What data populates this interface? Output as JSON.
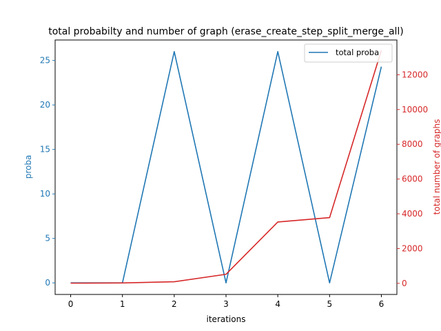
{
  "chart_data": {
    "type": "line",
    "title": "total probabilty and number of graph (erase_create_step_split_merge_all)",
    "xlabel": "iterations",
    "ylabel_left": "proba",
    "ylabel_right": "total number of graphs",
    "x": [
      0,
      1,
      2,
      3,
      4,
      5,
      6
    ],
    "xlim": [
      -0.3,
      6.3
    ],
    "ylim_left": [
      -1.3,
      27.3
    ],
    "ylim_right": [
      -640,
      14000
    ],
    "yticks_left": [
      0,
      5,
      10,
      15,
      20,
      25
    ],
    "yticks_right": [
      0,
      2000,
      4000,
      6000,
      8000,
      10000,
      12000
    ],
    "series": [
      {
        "name": "total proba",
        "axis": "left",
        "color": "#1f77b4",
        "values": [
          0.0,
          0.0,
          26.0,
          0.0,
          26.0,
          0.0,
          24.3
        ]
      },
      {
        "axis": "right",
        "color": "#d62728",
        "values": [
          10,
          20,
          90,
          520,
          3530,
          3780,
          13400
        ]
      }
    ],
    "legend_location": "upper-right",
    "grid": false,
    "left_axis_color": "#1f77b4",
    "right_axis_color": "#d62728"
  }
}
